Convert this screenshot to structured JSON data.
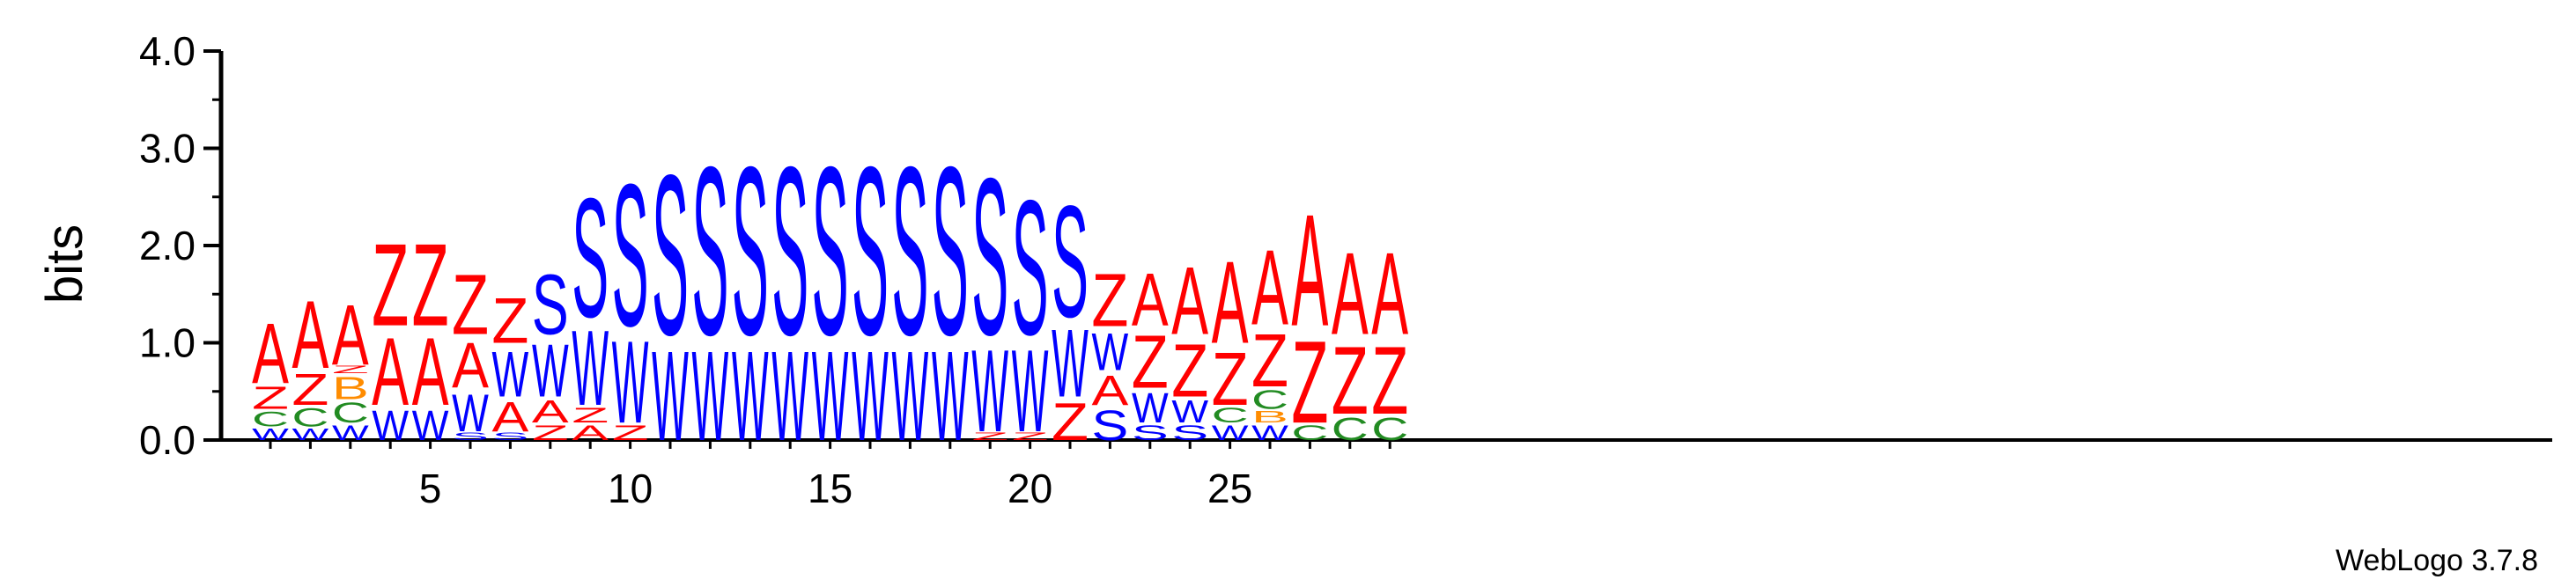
{
  "colors": {
    "A": "#ff0000",
    "Z": "#ff0000",
    "S": "#0000ff",
    "W": "#0000ff",
    "C": "#228b22",
    "B": "#ff8c00"
  },
  "credit": "WebLogo 3.7.8",
  "chart_data": {
    "type": "sequence logo",
    "title": "",
    "xlabel": "",
    "ylabel": "bits",
    "ylim": [
      0,
      4.0
    ],
    "yticks": [
      "0.0",
      "1.0",
      "2.0",
      "3.0",
      "4.0"
    ],
    "xticks": [
      "5",
      "10",
      "15",
      "20",
      "25"
    ],
    "xlim": [
      1,
      29
    ],
    "stacks": [
      {
        "pos": 1,
        "letters": [
          [
            "W",
            0.14
          ],
          [
            "C",
            0.18
          ],
          [
            "Z",
            0.27
          ],
          [
            "A",
            0.73
          ]
        ]
      },
      {
        "pos": 2,
        "letters": [
          [
            "W",
            0.14
          ],
          [
            "C",
            0.22
          ],
          [
            "Z",
            0.38
          ],
          [
            "A",
            0.82
          ]
        ]
      },
      {
        "pos": 3,
        "letters": [
          [
            "W",
            0.18
          ],
          [
            "C",
            0.24
          ],
          [
            "B",
            0.27
          ],
          [
            "Z",
            0.09
          ],
          [
            "A",
            0.73
          ]
        ]
      },
      {
        "pos": 4,
        "letters": [
          [
            "W",
            0.36
          ],
          [
            "A",
            0.82
          ],
          [
            "Z",
            1.0
          ]
        ]
      },
      {
        "pos": 5,
        "letters": [
          [
            "W",
            0.36
          ],
          [
            "A",
            0.82
          ],
          [
            "Z",
            1.0
          ]
        ]
      },
      {
        "pos": 6,
        "letters": [
          [
            "S",
            0.09
          ],
          [
            "W",
            0.45
          ],
          [
            "A",
            0.55
          ],
          [
            "Z",
            0.73
          ]
        ]
      },
      {
        "pos": 7,
        "letters": [
          [
            "S",
            0.09
          ],
          [
            "A",
            0.36
          ],
          [
            "W",
            0.55
          ],
          [
            "Z",
            0.55
          ]
        ]
      },
      {
        "pos": 8,
        "letters": [
          [
            "Z",
            0.18
          ],
          [
            "A",
            0.27
          ],
          [
            "W",
            0.64
          ],
          [
            "S",
            0.73
          ]
        ]
      },
      {
        "pos": 9,
        "letters": [
          [
            "A",
            0.18
          ],
          [
            "Z",
            0.18
          ],
          [
            "W",
            0.91
          ],
          [
            "S",
            1.45
          ]
        ]
      },
      {
        "pos": 10,
        "letters": [
          [
            "Z",
            0.18
          ],
          [
            "W",
            1.0
          ],
          [
            "S",
            1.73
          ]
        ]
      },
      {
        "pos": 11,
        "letters": [
          [
            "W",
            1.09
          ],
          [
            "S",
            1.95
          ]
        ]
      },
      {
        "pos": 12,
        "letters": [
          [
            "W",
            1.09
          ],
          [
            "S",
            2.05
          ]
        ]
      },
      {
        "pos": 13,
        "letters": [
          [
            "W",
            1.09
          ],
          [
            "S",
            2.05
          ]
        ]
      },
      {
        "pos": 14,
        "letters": [
          [
            "W",
            1.09
          ],
          [
            "S",
            2.05
          ]
        ]
      },
      {
        "pos": 15,
        "letters": [
          [
            "W",
            1.09
          ],
          [
            "S",
            2.05
          ]
        ]
      },
      {
        "pos": 16,
        "letters": [
          [
            "W",
            1.09
          ],
          [
            "S",
            2.05
          ]
        ]
      },
      {
        "pos": 17,
        "letters": [
          [
            "W",
            1.09
          ],
          [
            "S",
            2.05
          ]
        ]
      },
      {
        "pos": 18,
        "letters": [
          [
            "W",
            1.09
          ],
          [
            "S",
            2.05
          ]
        ]
      },
      {
        "pos": 19,
        "letters": [
          [
            "Z",
            0.09
          ],
          [
            "W",
            1.0
          ],
          [
            "S",
            1.91
          ]
        ]
      },
      {
        "pos": 20,
        "letters": [
          [
            "Z",
            0.09
          ],
          [
            "W",
            1.0
          ],
          [
            "S",
            1.64
          ]
        ]
      },
      {
        "pos": 21,
        "letters": [
          [
            "Z",
            0.45
          ],
          [
            "W",
            0.82
          ],
          [
            "S",
            1.36
          ]
        ]
      },
      {
        "pos": 22,
        "letters": [
          [
            "S",
            0.36
          ],
          [
            "A",
            0.36
          ],
          [
            "W",
            0.45
          ],
          [
            "Z",
            0.64
          ]
        ]
      },
      {
        "pos": 23,
        "letters": [
          [
            "S",
            0.18
          ],
          [
            "W",
            0.36
          ],
          [
            "Z",
            0.64
          ],
          [
            "A",
            0.64
          ]
        ]
      },
      {
        "pos": 24,
        "letters": [
          [
            "S",
            0.18
          ],
          [
            "W",
            0.27
          ],
          [
            "Z",
            0.64
          ],
          [
            "A",
            0.82
          ]
        ]
      },
      {
        "pos": 25,
        "letters": [
          [
            "W",
            0.18
          ],
          [
            "C",
            0.18
          ],
          [
            "Z",
            0.64
          ],
          [
            "A",
            1.0
          ]
        ]
      },
      {
        "pos": 26,
        "letters": [
          [
            "W",
            0.18
          ],
          [
            "B",
            0.14
          ],
          [
            "C",
            0.23
          ],
          [
            "Z",
            0.64
          ],
          [
            "A",
            0.91
          ]
        ]
      },
      {
        "pos": 27,
        "letters": [
          [
            "C",
            0.18
          ],
          [
            "Z",
            1.0
          ],
          [
            "A",
            1.36
          ]
        ]
      },
      {
        "pos": 28,
        "letters": [
          [
            "C",
            0.27
          ],
          [
            "Z",
            0.82
          ],
          [
            "A",
            1.0
          ]
        ]
      },
      {
        "pos": 29,
        "letters": [
          [
            "C",
            0.27
          ],
          [
            "Z",
            0.82
          ],
          [
            "A",
            1.0
          ]
        ]
      }
    ]
  }
}
